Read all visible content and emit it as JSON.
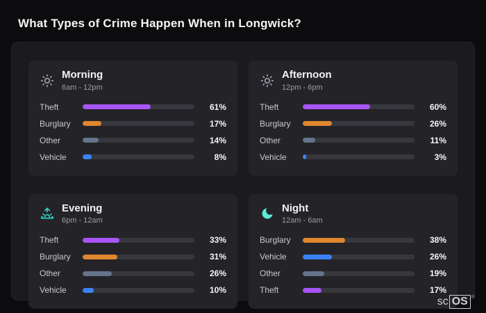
{
  "page": {
    "title": "What Types of Crime Happen When in Longwick?"
  },
  "brand": {
    "prefix": "sc",
    "suffix": "OS",
    "registered": "®"
  },
  "colors": {
    "theft": "#a855f7",
    "burglary": "#e0862e",
    "other": "#64748b",
    "vehicle": "#3b82f6",
    "evening_icon": "#2dd4bf",
    "night_icon": "#5eead4",
    "day_icon": "#9ca3af"
  },
  "chart_data": [
    {
      "type": "bar",
      "orientation": "horizontal",
      "title": "Morning",
      "subtitle": "6am - 12pm",
      "icon": "sun",
      "categories": [
        "Theft",
        "Burglary",
        "Other",
        "Vehicle"
      ],
      "values": [
        61,
        17,
        14,
        8
      ],
      "labels": [
        "61%",
        "17%",
        "14%",
        "8%"
      ],
      "xlim": [
        0,
        100
      ]
    },
    {
      "type": "bar",
      "orientation": "horizontal",
      "title": "Afternoon",
      "subtitle": "12pm - 6pm",
      "icon": "sun",
      "categories": [
        "Theft",
        "Burglary",
        "Other",
        "Vehicle"
      ],
      "values": [
        60,
        26,
        11,
        3
      ],
      "labels": [
        "60%",
        "26%",
        "11%",
        "3%"
      ],
      "xlim": [
        0,
        100
      ]
    },
    {
      "type": "bar",
      "orientation": "horizontal",
      "title": "Evening",
      "subtitle": "6pm - 12am",
      "icon": "sunset",
      "categories": [
        "Theft",
        "Burglary",
        "Other",
        "Vehicle"
      ],
      "values": [
        33,
        31,
        26,
        10
      ],
      "labels": [
        "33%",
        "31%",
        "26%",
        "10%"
      ],
      "xlim": [
        0,
        100
      ]
    },
    {
      "type": "bar",
      "orientation": "horizontal",
      "title": "Night",
      "subtitle": "12am - 6am",
      "icon": "moon",
      "categories": [
        "Burglary",
        "Vehicle",
        "Other",
        "Theft"
      ],
      "values": [
        38,
        26,
        19,
        17
      ],
      "labels": [
        "38%",
        "26%",
        "19%",
        "17%"
      ],
      "xlim": [
        0,
        100
      ]
    }
  ]
}
